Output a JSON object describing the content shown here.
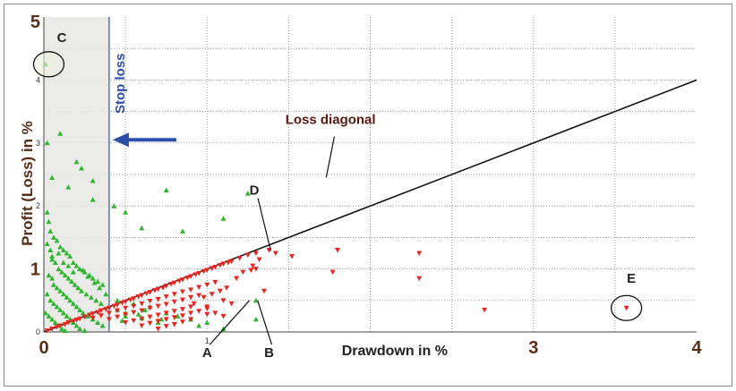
{
  "chart_data": {
    "type": "scatter",
    "title": "",
    "xlabel": "Drawdown in %",
    "ylabel": "Profit (Loss) in %",
    "xlim": [
      0,
      4
    ],
    "ylim": [
      0,
      5
    ],
    "x_ticks": [
      {
        "value": 0,
        "label": "0",
        "style": "big"
      },
      {
        "value": 1,
        "label": "1",
        "style": "small"
      },
      {
        "value": 3,
        "label": "3",
        "style": "big"
      },
      {
        "value": 4,
        "label": "4",
        "style": "big"
      }
    ],
    "y_ticks": [
      {
        "value": 0,
        "label": "0",
        "style": "small"
      },
      {
        "value": 1,
        "label": "1",
        "style": "big"
      },
      {
        "value": 2,
        "label": "2",
        "style": "small"
      },
      {
        "value": 3,
        "label": "3",
        "style": "small"
      },
      {
        "value": 4,
        "label": "4",
        "style": "small"
      },
      {
        "value": 5,
        "label": "5",
        "style": "big"
      }
    ],
    "grid": true,
    "stop_loss": {
      "x": 0.4,
      "label": "Stop loss",
      "color": "#2b4fa8"
    },
    "loss_diagonal": {
      "label": "Loss diagonal",
      "from": [
        0,
        0
      ],
      "to": [
        4,
        4
      ]
    },
    "series": [
      {
        "color": "#2db52d",
        "marker": "triangle-up",
        "points": [
          [
            0.01,
            4.25
          ],
          [
            0.02,
            3.0
          ],
          [
            0.1,
            3.15
          ],
          [
            0.05,
            2.45
          ],
          [
            0.2,
            2.7
          ],
          [
            0.23,
            2.6
          ],
          [
            0.15,
            2.3
          ],
          [
            0.3,
            2.4
          ],
          [
            0.3,
            2.1
          ],
          [
            0.75,
            2.25
          ],
          [
            1.25,
            2.2
          ],
          [
            0.43,
            2.0
          ],
          [
            0.5,
            1.9
          ],
          [
            1.1,
            1.8
          ],
          [
            0.6,
            1.65
          ],
          [
            0.85,
            1.6
          ],
          [
            0.02,
            1.9
          ],
          [
            0.03,
            1.75
          ],
          [
            0.04,
            1.6
          ],
          [
            0.06,
            1.5
          ],
          [
            0.08,
            1.45
          ],
          [
            0.1,
            1.35
          ],
          [
            0.12,
            1.3
          ],
          [
            0.14,
            1.25
          ],
          [
            0.16,
            1.2
          ],
          [
            0.18,
            1.1
          ],
          [
            0.2,
            1.05
          ],
          [
            0.22,
            1.0
          ],
          [
            0.25,
            0.95
          ],
          [
            0.28,
            0.9
          ],
          [
            0.3,
            0.85
          ],
          [
            0.33,
            0.8
          ],
          [
            0.36,
            0.75
          ],
          [
            0.02,
            1.4
          ],
          [
            0.04,
            1.3
          ],
          [
            0.05,
            1.15
          ],
          [
            0.07,
            1.1
          ],
          [
            0.09,
            1.0
          ],
          [
            0.11,
            0.95
          ],
          [
            0.13,
            0.9
          ],
          [
            0.15,
            0.85
          ],
          [
            0.17,
            0.8
          ],
          [
            0.19,
            0.75
          ],
          [
            0.21,
            0.7
          ],
          [
            0.23,
            0.65
          ],
          [
            0.26,
            0.6
          ],
          [
            0.29,
            0.55
          ],
          [
            0.32,
            0.5
          ],
          [
            0.35,
            0.45
          ],
          [
            0.03,
            0.9
          ],
          [
            0.05,
            0.85
          ],
          [
            0.06,
            0.75
          ],
          [
            0.08,
            0.7
          ],
          [
            0.1,
            0.65
          ],
          [
            0.12,
            0.6
          ],
          [
            0.14,
            0.55
          ],
          [
            0.16,
            0.5
          ],
          [
            0.18,
            0.45
          ],
          [
            0.2,
            0.4
          ],
          [
            0.22,
            0.35
          ],
          [
            0.24,
            0.3
          ],
          [
            0.27,
            0.25
          ],
          [
            0.3,
            0.2
          ],
          [
            0.33,
            0.15
          ],
          [
            0.36,
            0.1
          ],
          [
            0.02,
            0.6
          ],
          [
            0.04,
            0.5
          ],
          [
            0.06,
            0.45
          ],
          [
            0.08,
            0.4
          ],
          [
            0.1,
            0.35
          ],
          [
            0.12,
            0.3
          ],
          [
            0.14,
            0.25
          ],
          [
            0.16,
            0.2
          ],
          [
            0.18,
            0.15
          ],
          [
            0.2,
            0.1
          ],
          [
            0.22,
            0.05
          ],
          [
            0.25,
            0.02
          ],
          [
            0.01,
            0.3
          ],
          [
            0.03,
            0.25
          ],
          [
            0.05,
            0.2
          ],
          [
            0.07,
            0.15
          ],
          [
            0.09,
            0.1
          ],
          [
            0.11,
            0.05
          ],
          [
            0.13,
            0.02
          ],
          [
            0.05,
            1.2
          ],
          [
            0.12,
            1.1
          ],
          [
            0.18,
            0.95
          ],
          [
            0.27,
            0.88
          ],
          [
            0.34,
            0.7
          ],
          [
            0.38,
            0.6
          ],
          [
            0.09,
            1.25
          ],
          [
            0.15,
            1.05
          ],
          [
            0.24,
            0.98
          ],
          [
            0.31,
            0.78
          ],
          [
            0.45,
            0.5
          ],
          [
            0.55,
            0.45
          ],
          [
            0.65,
            0.4
          ],
          [
            0.75,
            0.3
          ],
          [
            0.82,
            0.25
          ],
          [
            0.9,
            0.2
          ],
          [
            0.5,
            0.3
          ],
          [
            0.6,
            0.22
          ],
          [
            0.7,
            0.15
          ],
          [
            1.1,
            0.05
          ],
          [
            0.95,
            0.1
          ],
          [
            0.45,
            0.35
          ],
          [
            0.5,
            0.25
          ],
          [
            0.58,
            0.28
          ],
          [
            0.62,
            0.35
          ],
          [
            0.48,
            0.18
          ],
          [
            0.72,
            0.2
          ],
          [
            1.0,
            0.15
          ],
          [
            1.3,
            0.2
          ],
          [
            1.3,
            0.5
          ]
        ]
      },
      {
        "color": "#e8251e",
        "marker": "triangle-down",
        "points": [
          [
            0.02,
            0.02
          ],
          [
            0.05,
            0.05
          ],
          [
            0.08,
            0.08
          ],
          [
            0.1,
            0.1
          ],
          [
            0.13,
            0.12
          ],
          [
            0.15,
            0.15
          ],
          [
            0.18,
            0.17
          ],
          [
            0.2,
            0.19
          ],
          [
            0.22,
            0.21
          ],
          [
            0.25,
            0.24
          ],
          [
            0.28,
            0.27
          ],
          [
            0.3,
            0.29
          ],
          [
            0.33,
            0.31
          ],
          [
            0.35,
            0.34
          ],
          [
            0.38,
            0.36
          ],
          [
            0.4,
            0.38
          ],
          [
            0.43,
            0.41
          ],
          [
            0.45,
            0.43
          ],
          [
            0.48,
            0.46
          ],
          [
            0.5,
            0.48
          ],
          [
            0.53,
            0.51
          ],
          [
            0.55,
            0.53
          ],
          [
            0.58,
            0.56
          ],
          [
            0.6,
            0.58
          ],
          [
            0.63,
            0.61
          ],
          [
            0.65,
            0.63
          ],
          [
            0.68,
            0.66
          ],
          [
            0.7,
            0.68
          ],
          [
            0.73,
            0.7
          ],
          [
            0.75,
            0.73
          ],
          [
            0.78,
            0.76
          ],
          [
            0.8,
            0.78
          ],
          [
            0.83,
            0.81
          ],
          [
            0.85,
            0.83
          ],
          [
            0.88,
            0.86
          ],
          [
            0.9,
            0.88
          ],
          [
            0.93,
            0.91
          ],
          [
            0.95,
            0.93
          ],
          [
            0.98,
            0.96
          ],
          [
            1.0,
            0.98
          ],
          [
            1.03,
            1.01
          ],
          [
            1.05,
            1.03
          ],
          [
            1.08,
            1.06
          ],
          [
            1.1,
            1.08
          ],
          [
            1.13,
            1.1
          ],
          [
            1.15,
            1.12
          ],
          [
            1.2,
            1.17
          ],
          [
            1.25,
            1.22
          ],
          [
            0.3,
            0.22
          ],
          [
            0.35,
            0.26
          ],
          [
            0.4,
            0.3
          ],
          [
            0.45,
            0.34
          ],
          [
            0.5,
            0.38
          ],
          [
            0.55,
            0.41
          ],
          [
            0.6,
            0.45
          ],
          [
            0.65,
            0.49
          ],
          [
            0.7,
            0.52
          ],
          [
            0.75,
            0.56
          ],
          [
            0.8,
            0.6
          ],
          [
            0.85,
            0.64
          ],
          [
            0.9,
            0.67
          ],
          [
            0.95,
            0.71
          ],
          [
            1.0,
            0.75
          ],
          [
            1.05,
            0.79
          ],
          [
            0.4,
            0.2
          ],
          [
            0.45,
            0.24
          ],
          [
            0.5,
            0.28
          ],
          [
            0.55,
            0.31
          ],
          [
            0.6,
            0.34
          ],
          [
            0.65,
            0.38
          ],
          [
            0.7,
            0.41
          ],
          [
            0.75,
            0.44
          ],
          [
            0.8,
            0.48
          ],
          [
            0.85,
            0.51
          ],
          [
            0.9,
            0.55
          ],
          [
            0.95,
            0.58
          ],
          [
            0.5,
            0.15
          ],
          [
            0.55,
            0.18
          ],
          [
            0.6,
            0.21
          ],
          [
            0.65,
            0.24
          ],
          [
            0.7,
            0.27
          ],
          [
            0.75,
            0.3
          ],
          [
            0.8,
            0.33
          ],
          [
            0.85,
            0.36
          ],
          [
            0.9,
            0.4
          ],
          [
            0.6,
            0.1
          ],
          [
            0.65,
            0.14
          ],
          [
            0.7,
            0.17
          ],
          [
            0.75,
            0.2
          ],
          [
            0.8,
            0.23
          ],
          [
            0.85,
            0.26
          ],
          [
            0.9,
            0.3
          ],
          [
            0.95,
            0.33
          ],
          [
            1.0,
            0.37
          ],
          [
            0.7,
            0.05
          ],
          [
            0.75,
            0.09
          ],
          [
            0.8,
            0.12
          ],
          [
            0.85,
            0.16
          ],
          [
            0.9,
            0.2
          ],
          [
            1.0,
            0.28
          ],
          [
            1.05,
            0.3
          ],
          [
            1.1,
            0.25
          ],
          [
            0.98,
            0.55
          ],
          [
            1.03,
            0.6
          ],
          [
            1.08,
            0.65
          ],
          [
            1.12,
            0.7
          ],
          [
            1.18,
            0.85
          ],
          [
            1.22,
            0.95
          ],
          [
            1.28,
            1.05
          ],
          [
            1.32,
            1.15
          ],
          [
            1.3,
            1.25
          ],
          [
            1.15,
            0.45
          ],
          [
            1.1,
            0.5
          ],
          [
            0.92,
            0.45
          ],
          [
            1.0,
            0.4
          ],
          [
            1.27,
            0.98
          ],
          [
            1.3,
            1.0
          ],
          [
            1.38,
            1.3
          ],
          [
            1.42,
            1.25
          ],
          [
            1.35,
            0.65
          ],
          [
            1.52,
            1.2
          ],
          [
            1.77,
            0.95
          ],
          [
            1.8,
            1.3
          ],
          [
            2.3,
            1.25
          ],
          [
            2.3,
            0.85
          ],
          [
            2.7,
            0.35
          ],
          [
            3.57,
            0.38
          ]
        ]
      }
    ],
    "annotations": [
      {
        "label": "C",
        "x": 0.11,
        "y": 4.6,
        "circle": {
          "x": 0.03,
          "y": 4.25
        }
      },
      {
        "label": "D",
        "x": 1.29,
        "y": 2.18,
        "pointer_to": [
          1.39,
          1.29
        ]
      },
      {
        "label": "A",
        "x": 1.0,
        "y": -0.4,
        "pointer_to": [
          1.26,
          0.5
        ]
      },
      {
        "label": "B",
        "x": 1.38,
        "y": -0.4,
        "pointer_to": [
          1.31,
          0.5
        ]
      },
      {
        "label": "E",
        "x": 3.6,
        "y": 0.78,
        "circle": {
          "x": 3.57,
          "y": 0.38
        }
      }
    ]
  }
}
